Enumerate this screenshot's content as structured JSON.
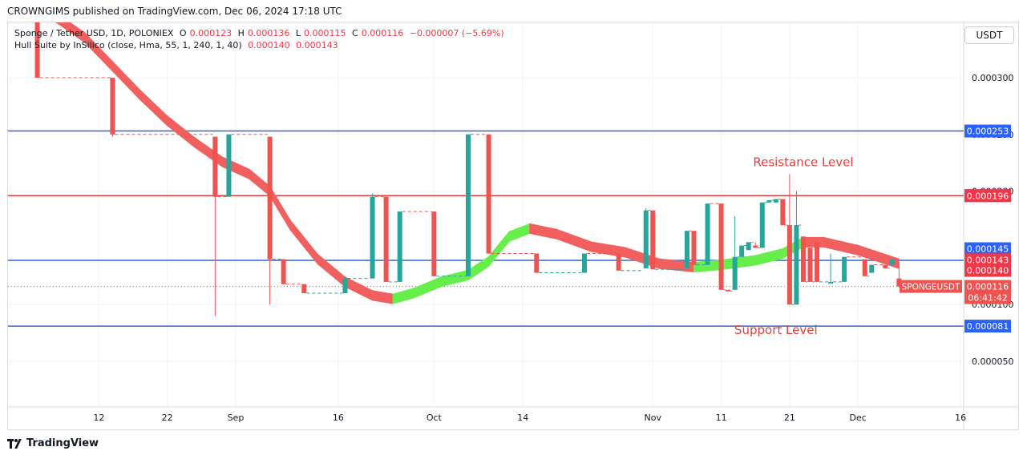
{
  "header": {
    "publisher": "CROWNGIMS published on TradingView.com, Dec 06, 2024 17:18 UTC"
  },
  "legend": {
    "symbol": "Sponge / Tether USD, 1D, POLONIEX",
    "open_label": "O",
    "open": "0.000123",
    "high_label": "H",
    "high": "0.000136",
    "low_label": "L",
    "low": "0.000115",
    "close_label": "C",
    "close": "0.000116",
    "change": "−0.000007 (−5.69%)",
    "indicator": "Hull Suite by InSilico (close, Hma, 55, 1, 240, 1, 40)",
    "ind_val1": "0.000140",
    "ind_val2": "0.000143"
  },
  "currency_button": "USDT",
  "footer": {
    "brand": "TradingView"
  },
  "colors": {
    "up": "#26a69a",
    "down": "#ef5350",
    "hull_up": "#66ef4a",
    "hull_down": "#f25f5f",
    "red_line": "#e03c3c",
    "blue_line": "#3366cc",
    "text_red": "#e0403c"
  },
  "chart_data": {
    "type": "candlestick",
    "interval": "1D",
    "ylim": [
      0.0,
      0.00036
    ],
    "y_ticks": [
      {
        "value": 0.0003,
        "label": "0.000300"
      },
      {
        "value": 0.00025,
        "label": "0.000250"
      },
      {
        "value": 0.0002,
        "label": "0.000200"
      },
      {
        "value": 0.0001,
        "label": "0.000100"
      },
      {
        "value": 5e-05,
        "label": "0.000050"
      }
    ],
    "x_ticks": [
      {
        "day": 12,
        "label": "12"
      },
      {
        "day": 22,
        "label": "22"
      },
      {
        "day": 32,
        "label": "Sep"
      },
      {
        "day": 47,
        "label": "16"
      },
      {
        "day": 61,
        "label": "Oct"
      },
      {
        "day": 74,
        "label": "14"
      },
      {
        "day": 93,
        "label": "Nov"
      },
      {
        "day": 103,
        "label": "11"
      },
      {
        "day": 113,
        "label": "21"
      },
      {
        "day": 123,
        "label": "Dec"
      },
      {
        "day": 138,
        "label": "16"
      }
    ],
    "horizontal_lines": [
      {
        "value": 0.000355,
        "color": "red",
        "label": ""
      },
      {
        "value": 0.000253,
        "color": "blue",
        "label": "0.000253"
      },
      {
        "value": 0.000196,
        "color": "red",
        "label": "0.000196"
      },
      {
        "value": 0.000139,
        "color": "blue",
        "label": ""
      },
      {
        "value": 8.1e-05,
        "color": "blue",
        "label": "0.000081"
      }
    ],
    "price_badges": [
      {
        "value": 0.000145,
        "label": "0.000145",
        "color": "#2962ff"
      },
      {
        "value": 0.000143,
        "label": "0.000143",
        "color": "#f23645"
      },
      {
        "value": 0.00014,
        "label": "0.000140",
        "color": "#f23645"
      },
      {
        "value": 0.000116,
        "label": "0.000116",
        "color": "#ef5350"
      }
    ],
    "current_price": 0.000116,
    "countdown": "06:41:42",
    "symbol_badge": "SPONGEUSDT",
    "annotations": [
      {
        "text": "Resistance Level",
        "day": 115,
        "value": 0.000222
      },
      {
        "text": "Support Level",
        "day": 111,
        "value": 7.4e-05
      }
    ],
    "candles": [
      {
        "d": 0,
        "o": 0.00035,
        "h": 0.000355,
        "l": 0.00035,
        "c": 0.000355
      },
      {
        "d": 2,
        "o": 0.000355,
        "h": 0.000355,
        "l": 0.000352,
        "c": 0.000352
      },
      {
        "d": 3,
        "o": 0.000365,
        "h": 0.000365,
        "l": 0.0003,
        "c": 0.0003
      },
      {
        "d": 14,
        "o": 0.0003,
        "h": 0.0003,
        "l": 0.000248,
        "c": 0.00025
      },
      {
        "d": 29,
        "o": 0.000248,
        "h": 0.000248,
        "l": 9e-05,
        "c": 0.000195
      },
      {
        "d": 31,
        "o": 0.000195,
        "h": 0.00025,
        "l": 0.000195,
        "c": 0.00025
      },
      {
        "d": 37,
        "o": 0.000248,
        "h": 0.000248,
        "l": 0.0001,
        "c": 0.00014
      },
      {
        "d": 39,
        "o": 0.00014,
        "h": 0.00014,
        "l": 0.000118,
        "c": 0.000118
      },
      {
        "d": 42,
        "o": 0.000118,
        "h": 0.000118,
        "l": 0.00011,
        "c": 0.00011
      },
      {
        "d": 48,
        "o": 0.00011,
        "h": 0.000125,
        "l": 0.00011,
        "c": 0.000123
      },
      {
        "d": 52,
        "o": 0.000123,
        "h": 0.000198,
        "l": 0.000123,
        "c": 0.000195
      },
      {
        "d": 54,
        "o": 0.000195,
        "h": 0.000195,
        "l": 0.00012,
        "c": 0.00012
      },
      {
        "d": 56,
        "o": 0.00012,
        "h": 0.000182,
        "l": 0.00012,
        "c": 0.000182
      },
      {
        "d": 61,
        "o": 0.000182,
        "h": 0.000182,
        "l": 0.000125,
        "c": 0.000125
      },
      {
        "d": 66,
        "o": 0.000125,
        "h": 0.00025,
        "l": 0.000125,
        "c": 0.00025
      },
      {
        "d": 69,
        "o": 0.00025,
        "h": 0.00025,
        "l": 0.000145,
        "c": 0.000145
      },
      {
        "d": 76,
        "o": 0.000145,
        "h": 0.000145,
        "l": 0.000128,
        "c": 0.000128
      },
      {
        "d": 83,
        "o": 0.000128,
        "h": 0.000145,
        "l": 0.000128,
        "c": 0.000145
      },
      {
        "d": 88,
        "o": 0.000145,
        "h": 0.000145,
        "l": 0.00013,
        "c": 0.00013
      },
      {
        "d": 92,
        "o": 0.000132,
        "h": 0.000185,
        "l": 0.000132,
        "c": 0.000183
      },
      {
        "d": 93,
        "o": 0.000183,
        "h": 0.000183,
        "l": 0.000131,
        "c": 0.000131
      },
      {
        "d": 98,
        "o": 0.000132,
        "h": 0.000165,
        "l": 0.000132,
        "c": 0.000165
      },
      {
        "d": 99,
        "o": 0.000165,
        "h": 0.000165,
        "l": 0.000135,
        "c": 0.000135
      },
      {
        "d": 101,
        "o": 0.000135,
        "h": 0.000189,
        "l": 0.000135,
        "c": 0.000189
      },
      {
        "d": 103,
        "o": 0.000189,
        "h": 0.000189,
        "l": 0.000113,
        "c": 0.000113
      },
      {
        "d": 104,
        "o": 0.000113,
        "h": 0.000113,
        "l": 0.000112,
        "c": 0.000112
      },
      {
        "d": 105,
        "o": 0.000113,
        "h": 0.000178,
        "l": 0.000113,
        "c": 0.000142
      },
      {
        "d": 106,
        "o": 0.000142,
        "h": 0.000152,
        "l": 0.000142,
        "c": 0.000152
      },
      {
        "d": 107,
        "o": 0.000148,
        "h": 0.000155,
        "l": 0.000148,
        "c": 0.000155
      },
      {
        "d": 108,
        "o": 0.000152,
        "h": 0.000155,
        "l": 0.00015,
        "c": 0.00015
      },
      {
        "d": 109,
        "o": 0.00015,
        "h": 0.00019,
        "l": 0.00015,
        "c": 0.00019
      },
      {
        "d": 110,
        "o": 0.00019,
        "h": 0.000192,
        "l": 0.00019,
        "c": 0.000192
      },
      {
        "d": 111,
        "o": 0.00019,
        "h": 0.000193,
        "l": 0.00019,
        "c": 0.000193
      },
      {
        "d": 112,
        "o": 0.000193,
        "h": 0.000193,
        "l": 0.00017,
        "c": 0.00017
      },
      {
        "d": 113,
        "o": 0.00017,
        "h": 0.000215,
        "l": 0.0001,
        "c": 0.0001
      },
      {
        "d": 114,
        "o": 0.0001,
        "h": 0.0002,
        "l": 0.0001,
        "c": 0.00017
      },
      {
        "d": 115,
        "o": 0.00016,
        "h": 0.00016,
        "l": 0.00012,
        "c": 0.00012
      },
      {
        "d": 116,
        "o": 0.00015,
        "h": 0.00015,
        "l": 0.00012,
        "c": 0.00012
      },
      {
        "d": 117,
        "o": 0.000155,
        "h": 0.000155,
        "l": 0.00012,
        "c": 0.00012
      },
      {
        "d": 119,
        "o": 0.00012,
        "h": 0.000145,
        "l": 0.00012,
        "c": 0.00012
      },
      {
        "d": 121,
        "o": 0.00012,
        "h": 0.000142,
        "l": 0.00012,
        "c": 0.000142
      },
      {
        "d": 124,
        "o": 0.00014,
        "h": 0.00014,
        "l": 0.000125,
        "c": 0.000125
      },
      {
        "d": 125,
        "o": 0.000128,
        "h": 0.000135,
        "l": 0.000128,
        "c": 0.000135
      },
      {
        "d": 127,
        "o": 0.000135,
        "h": 0.000135,
        "l": 0.000132,
        "c": 0.000132
      },
      {
        "d": 128,
        "o": 0.000135,
        "h": 0.00014,
        "l": 0.000135,
        "c": 0.00014
      },
      {
        "d": 129,
        "o": 0.000123,
        "h": 0.000136,
        "l": 0.000115,
        "c": 0.000116
      }
    ],
    "hull": [
      {
        "d": 0,
        "v": 0.00036,
        "dir": "up"
      },
      {
        "d": 3,
        "v": 0.000362,
        "dir": "down"
      },
      {
        "d": 6,
        "v": 0.000352,
        "dir": "down"
      },
      {
        "d": 10,
        "v": 0.000335,
        "dir": "down"
      },
      {
        "d": 14,
        "v": 0.00031,
        "dir": "down"
      },
      {
        "d": 18,
        "v": 0.000285,
        "dir": "down"
      },
      {
        "d": 22,
        "v": 0.000262,
        "dir": "down"
      },
      {
        "d": 26,
        "v": 0.000243,
        "dir": "down"
      },
      {
        "d": 30,
        "v": 0.000226,
        "dir": "down"
      },
      {
        "d": 34,
        "v": 0.000215,
        "dir": "down"
      },
      {
        "d": 37,
        "v": 0.0002,
        "dir": "down"
      },
      {
        "d": 40,
        "v": 0.00017,
        "dir": "down"
      },
      {
        "d": 44,
        "v": 0.00014,
        "dir": "down"
      },
      {
        "d": 48,
        "v": 0.00012,
        "dir": "down"
      },
      {
        "d": 52,
        "v": 0.000108,
        "dir": "down"
      },
      {
        "d": 55,
        "v": 0.000105,
        "dir": "down"
      },
      {
        "d": 58,
        "v": 0.00011,
        "dir": "up"
      },
      {
        "d": 62,
        "v": 0.00012,
        "dir": "up"
      },
      {
        "d": 66,
        "v": 0.000126,
        "dir": "up"
      },
      {
        "d": 69,
        "v": 0.000138,
        "dir": "up"
      },
      {
        "d": 72,
        "v": 0.00016,
        "dir": "up"
      },
      {
        "d": 75,
        "v": 0.000167,
        "dir": "up"
      },
      {
        "d": 79,
        "v": 0.000162,
        "dir": "down"
      },
      {
        "d": 84,
        "v": 0.000151,
        "dir": "down"
      },
      {
        "d": 89,
        "v": 0.000146,
        "dir": "down"
      },
      {
        "d": 94,
        "v": 0.000136,
        "dir": "down"
      },
      {
        "d": 99,
        "v": 0.000133,
        "dir": "down"
      },
      {
        "d": 103,
        "v": 0.000135,
        "dir": "up"
      },
      {
        "d": 108,
        "v": 0.000139,
        "dir": "up"
      },
      {
        "d": 112,
        "v": 0.000145,
        "dir": "up"
      },
      {
        "d": 115,
        "v": 0.000155,
        "dir": "up"
      },
      {
        "d": 118,
        "v": 0.000155,
        "dir": "down"
      },
      {
        "d": 123,
        "v": 0.000148,
        "dir": "down"
      },
      {
        "d": 129,
        "v": 0.000136,
        "dir": "down"
      }
    ]
  }
}
